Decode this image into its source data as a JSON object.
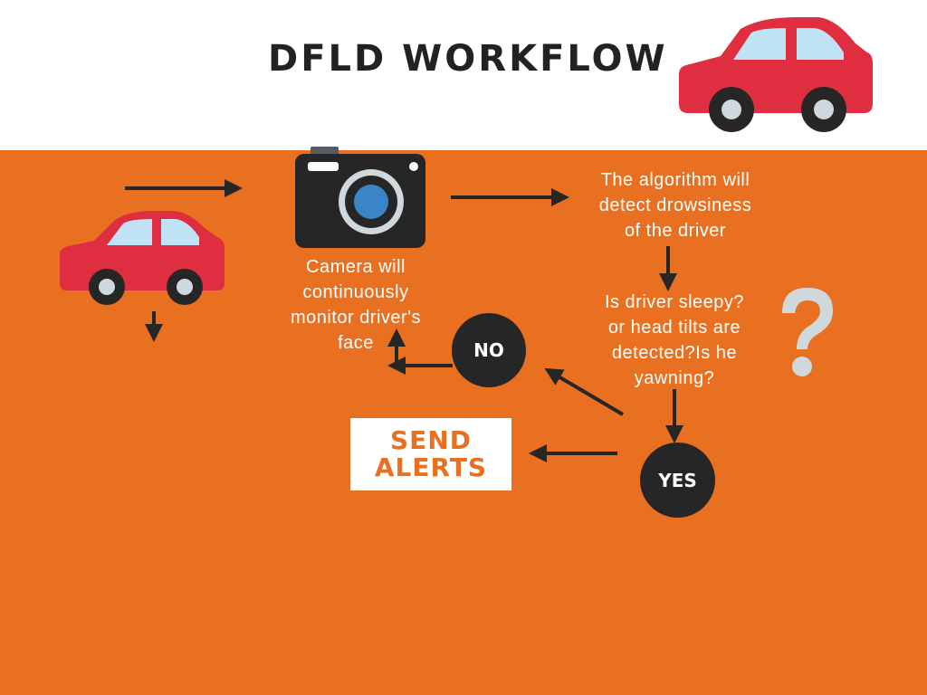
{
  "title": "DFLD WORKFLOW",
  "camera_text": "Camera will continuously monitor driver's face",
  "camera_lines": [
    "Camera will",
    "continuously",
    "monitor driver's",
    "face"
  ],
  "algorithm_lines": [
    "The algorithm will",
    "detect drowsiness",
    "of the driver"
  ],
  "question_lines": [
    "Is driver sleepy?",
    "or head tilts are",
    "detected?Is he",
    "yawning?"
  ],
  "no_label": "NO",
  "yes_label": "YES",
  "alert_lines": [
    "SEND",
    "ALERTS"
  ],
  "colors": {
    "background_main": "#e87020",
    "header": "#ffffff",
    "car": "#de2e40",
    "dark": "#262626",
    "question_mark": "#cfd8dc",
    "lens": "#3a85c6"
  },
  "icons": [
    "car-icon",
    "camera-icon",
    "question-mark-icon",
    "arrow-icon"
  ]
}
